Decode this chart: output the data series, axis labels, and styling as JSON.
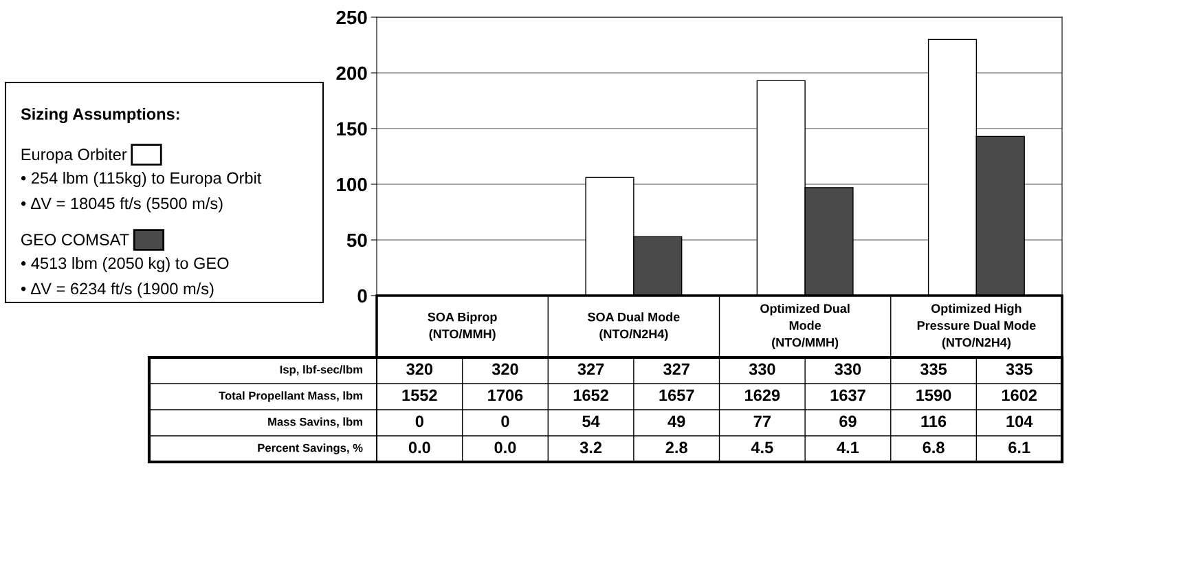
{
  "chart_data": {
    "type": "bar",
    "legend_title": "Sizing Assumptions:",
    "legend": "left",
    "categories": [
      "SOA Biprop\n(NTO/MMH)",
      "SOA Dual Mode\n(NTO/N2H4)",
      "Optimized Dual\nMode\n(NTO/MMH)",
      "Optimized High\nPressure Dual Mode\n(NTO/N2H4)"
    ],
    "series": [
      {
        "name": "Europa Orbiter",
        "color": "#ffffff",
        "values": [
          0,
          106,
          193,
          230
        ]
      },
      {
        "name": "GEO COMSAT",
        "color": "#4a4a4a",
        "values": [
          0,
          53,
          97,
          143
        ]
      }
    ],
    "ylim": [
      0,
      250
    ],
    "yticks": [
      0,
      50,
      100,
      150,
      200,
      250
    ],
    "grid": "y",
    "annotations": [
      "• ∆V = 18045 ft/s (5500 m/s)",
      "• 254 lbm (115kg) to Europa Orbit",
      "• 4513 lbm (2050 kg) to GEO",
      "• ∆V = 6234 ft/s (1900 m/s)",
      "Isp, lbf-sec/lbm",
      "320",
      "320",
      "327",
      "327",
      "330",
      "330",
      "335",
      "335",
      "Total Propellant Mass, lbm",
      "1552",
      "1706",
      "1652",
      "1657",
      "1629",
      "1637",
      "1590",
      "1602",
      "Mass Savins, lbm",
      "0",
      "0",
      "54",
      "49",
      "77",
      "69",
      "116",
      "104",
      "Percent Savings, %",
      "0.0",
      "0.0",
      "3.2",
      "2.8",
      "4.5",
      "4.1",
      "6.8",
      "6.1"
    ]
  }
}
